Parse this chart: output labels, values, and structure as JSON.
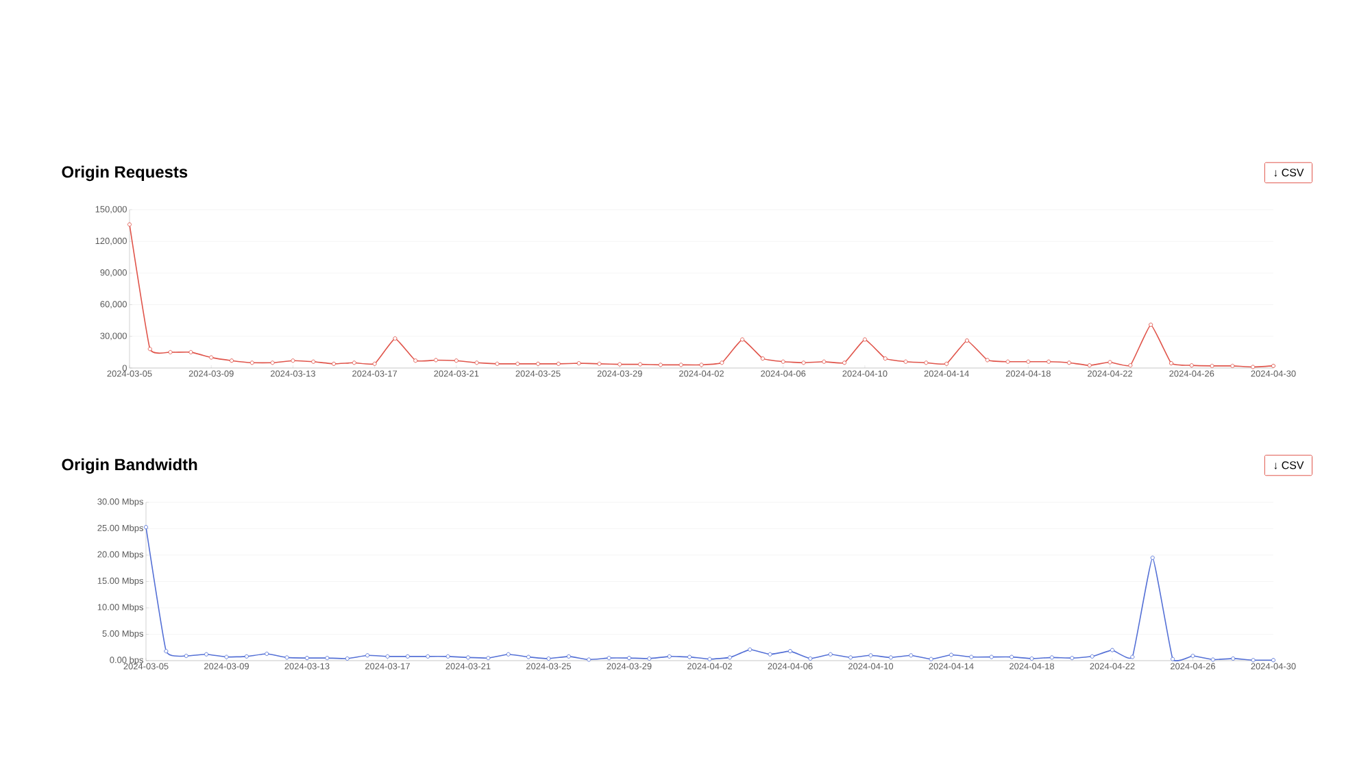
{
  "chart_data": [
    {
      "type": "line",
      "title": "Origin Requests",
      "annotations": [
        "↓ CSV"
      ],
      "x": [
        "2024-03-05",
        "2024-03-06",
        "2024-03-07",
        "2024-03-08",
        "2024-03-09",
        "2024-03-10",
        "2024-03-11",
        "2024-03-12",
        "2024-03-13",
        "2024-03-14",
        "2024-03-15",
        "2024-03-16",
        "2024-03-17",
        "2024-03-18",
        "2024-03-19",
        "2024-03-20",
        "2024-03-21",
        "2024-03-22",
        "2024-03-23",
        "2024-03-24",
        "2024-03-25",
        "2024-03-26",
        "2024-03-27",
        "2024-03-28",
        "2024-03-29",
        "2024-03-30",
        "2024-03-31",
        "2024-04-01",
        "2024-04-02",
        "2024-04-03",
        "2024-04-04",
        "2024-04-05",
        "2024-04-06",
        "2024-04-07",
        "2024-04-08",
        "2024-04-09",
        "2024-04-10",
        "2024-04-11",
        "2024-04-12",
        "2024-04-13",
        "2024-04-14",
        "2024-04-15",
        "2024-04-16",
        "2024-04-17",
        "2024-04-18",
        "2024-04-19",
        "2024-04-20",
        "2024-04-21",
        "2024-04-22",
        "2024-04-23",
        "2024-04-24",
        "2024-04-25",
        "2024-04-26",
        "2024-04-27",
        "2024-04-28",
        "2024-04-29",
        "2024-04-30"
      ],
      "series": [
        {
          "color": "#e0544a",
          "values": [
            136000,
            18000,
            15000,
            15000,
            10000,
            7000,
            5000,
            5000,
            7000,
            6000,
            4000,
            5000,
            4000,
            28000,
            7000,
            7500,
            7000,
            5000,
            4000,
            4000,
            4000,
            4000,
            4500,
            4000,
            3500,
            3500,
            3000,
            3000,
            3000,
            5000,
            27000,
            9000,
            6000,
            5000,
            6000,
            5000,
            27000,
            9000,
            6000,
            5000,
            4000,
            26000,
            7500,
            6000,
            6000,
            6000,
            5000,
            2500,
            5500,
            2500,
            41000,
            4500,
            2500,
            2000,
            2000,
            1000,
            2000
          ]
        }
      ],
      "xlim": [
        "2024-03-05",
        "2024-04-30"
      ],
      "xticks": [
        "2024-03-05",
        "2024-03-09",
        "2024-03-13",
        "2024-03-17",
        "2024-03-21",
        "2024-03-25",
        "2024-03-29",
        "2024-04-02",
        "2024-04-06",
        "2024-04-10",
        "2024-04-14",
        "2024-04-18",
        "2024-04-22",
        "2024-04-26",
        "2024-04-30"
      ],
      "ylim": [
        0,
        150000
      ],
      "yticks": [
        {
          "value": 0,
          "label": "0"
        },
        {
          "value": 30000,
          "label": "30,000"
        },
        {
          "value": 60000,
          "label": "60,000"
        },
        {
          "value": 90000,
          "label": "90,000"
        },
        {
          "value": 120000,
          "label": "120,000"
        },
        {
          "value": 150000,
          "label": "150,000"
        }
      ],
      "grid": "y",
      "marker": "circle",
      "line_style": "solid"
    },
    {
      "type": "line",
      "title": "Origin Bandwidth",
      "annotations": [
        "↓ CSV"
      ],
      "x": [
        "2024-03-05",
        "2024-03-06",
        "2024-03-07",
        "2024-03-08",
        "2024-03-09",
        "2024-03-10",
        "2024-03-11",
        "2024-03-12",
        "2024-03-13",
        "2024-03-14",
        "2024-03-15",
        "2024-03-16",
        "2024-03-17",
        "2024-03-18",
        "2024-03-19",
        "2024-03-20",
        "2024-03-21",
        "2024-03-22",
        "2024-03-23",
        "2024-03-24",
        "2024-03-25",
        "2024-03-26",
        "2024-03-27",
        "2024-03-28",
        "2024-03-29",
        "2024-03-30",
        "2024-03-31",
        "2024-04-01",
        "2024-04-02",
        "2024-04-03",
        "2024-04-04",
        "2024-04-05",
        "2024-04-06",
        "2024-04-07",
        "2024-04-08",
        "2024-04-09",
        "2024-04-10",
        "2024-04-11",
        "2024-04-12",
        "2024-04-13",
        "2024-04-14",
        "2024-04-15",
        "2024-04-16",
        "2024-04-17",
        "2024-04-18",
        "2024-04-19",
        "2024-04-20",
        "2024-04-21",
        "2024-04-22",
        "2024-04-23",
        "2024-04-24",
        "2024-04-25",
        "2024-04-26",
        "2024-04-27",
        "2024-04-28",
        "2024-04-29",
        "2024-04-30"
      ],
      "series": [
        {
          "color": "#5470d6",
          "values": [
            25.3,
            1.8,
            0.9,
            1.2,
            0.7,
            0.8,
            1.3,
            0.6,
            0.5,
            0.5,
            0.4,
            1.0,
            0.8,
            0.8,
            0.8,
            0.8,
            0.6,
            0.5,
            1.2,
            0.7,
            0.4,
            0.8,
            0.2,
            0.5,
            0.5,
            0.4,
            0.8,
            0.7,
            0.3,
            0.6,
            2.1,
            1.2,
            1.8,
            0.4,
            1.2,
            0.6,
            1.0,
            0.6,
            1.0,
            0.3,
            1.1,
            0.7,
            0.7,
            0.7,
            0.4,
            0.6,
            0.5,
            0.8,
            2.0,
            0.7,
            19.5,
            0.3,
            0.9,
            0.2,
            0.4,
            0.1,
            0.1
          ]
        }
      ],
      "xlim": [
        "2024-03-05",
        "2024-04-30"
      ],
      "xticks": [
        "2024-03-05",
        "2024-03-09",
        "2024-03-13",
        "2024-03-17",
        "2024-03-21",
        "2024-03-25",
        "2024-03-29",
        "2024-04-02",
        "2024-04-06",
        "2024-04-10",
        "2024-04-14",
        "2024-04-18",
        "2024-04-22",
        "2024-04-26",
        "2024-04-30"
      ],
      "ylim": [
        0,
        30
      ],
      "yticks": [
        {
          "value": 0,
          "label": "0.00 bps"
        },
        {
          "value": 5,
          "label": "5.00 Mbps"
        },
        {
          "value": 10,
          "label": "10.00 Mbps"
        },
        {
          "value": 15,
          "label": "15.00 Mbps"
        },
        {
          "value": 20,
          "label": "20.00 Mbps"
        },
        {
          "value": 25,
          "label": "25.00 Mbps"
        },
        {
          "value": 30,
          "label": "30.00 Mbps"
        }
      ],
      "grid": "y",
      "marker": "circle",
      "line_style": "solid"
    }
  ]
}
